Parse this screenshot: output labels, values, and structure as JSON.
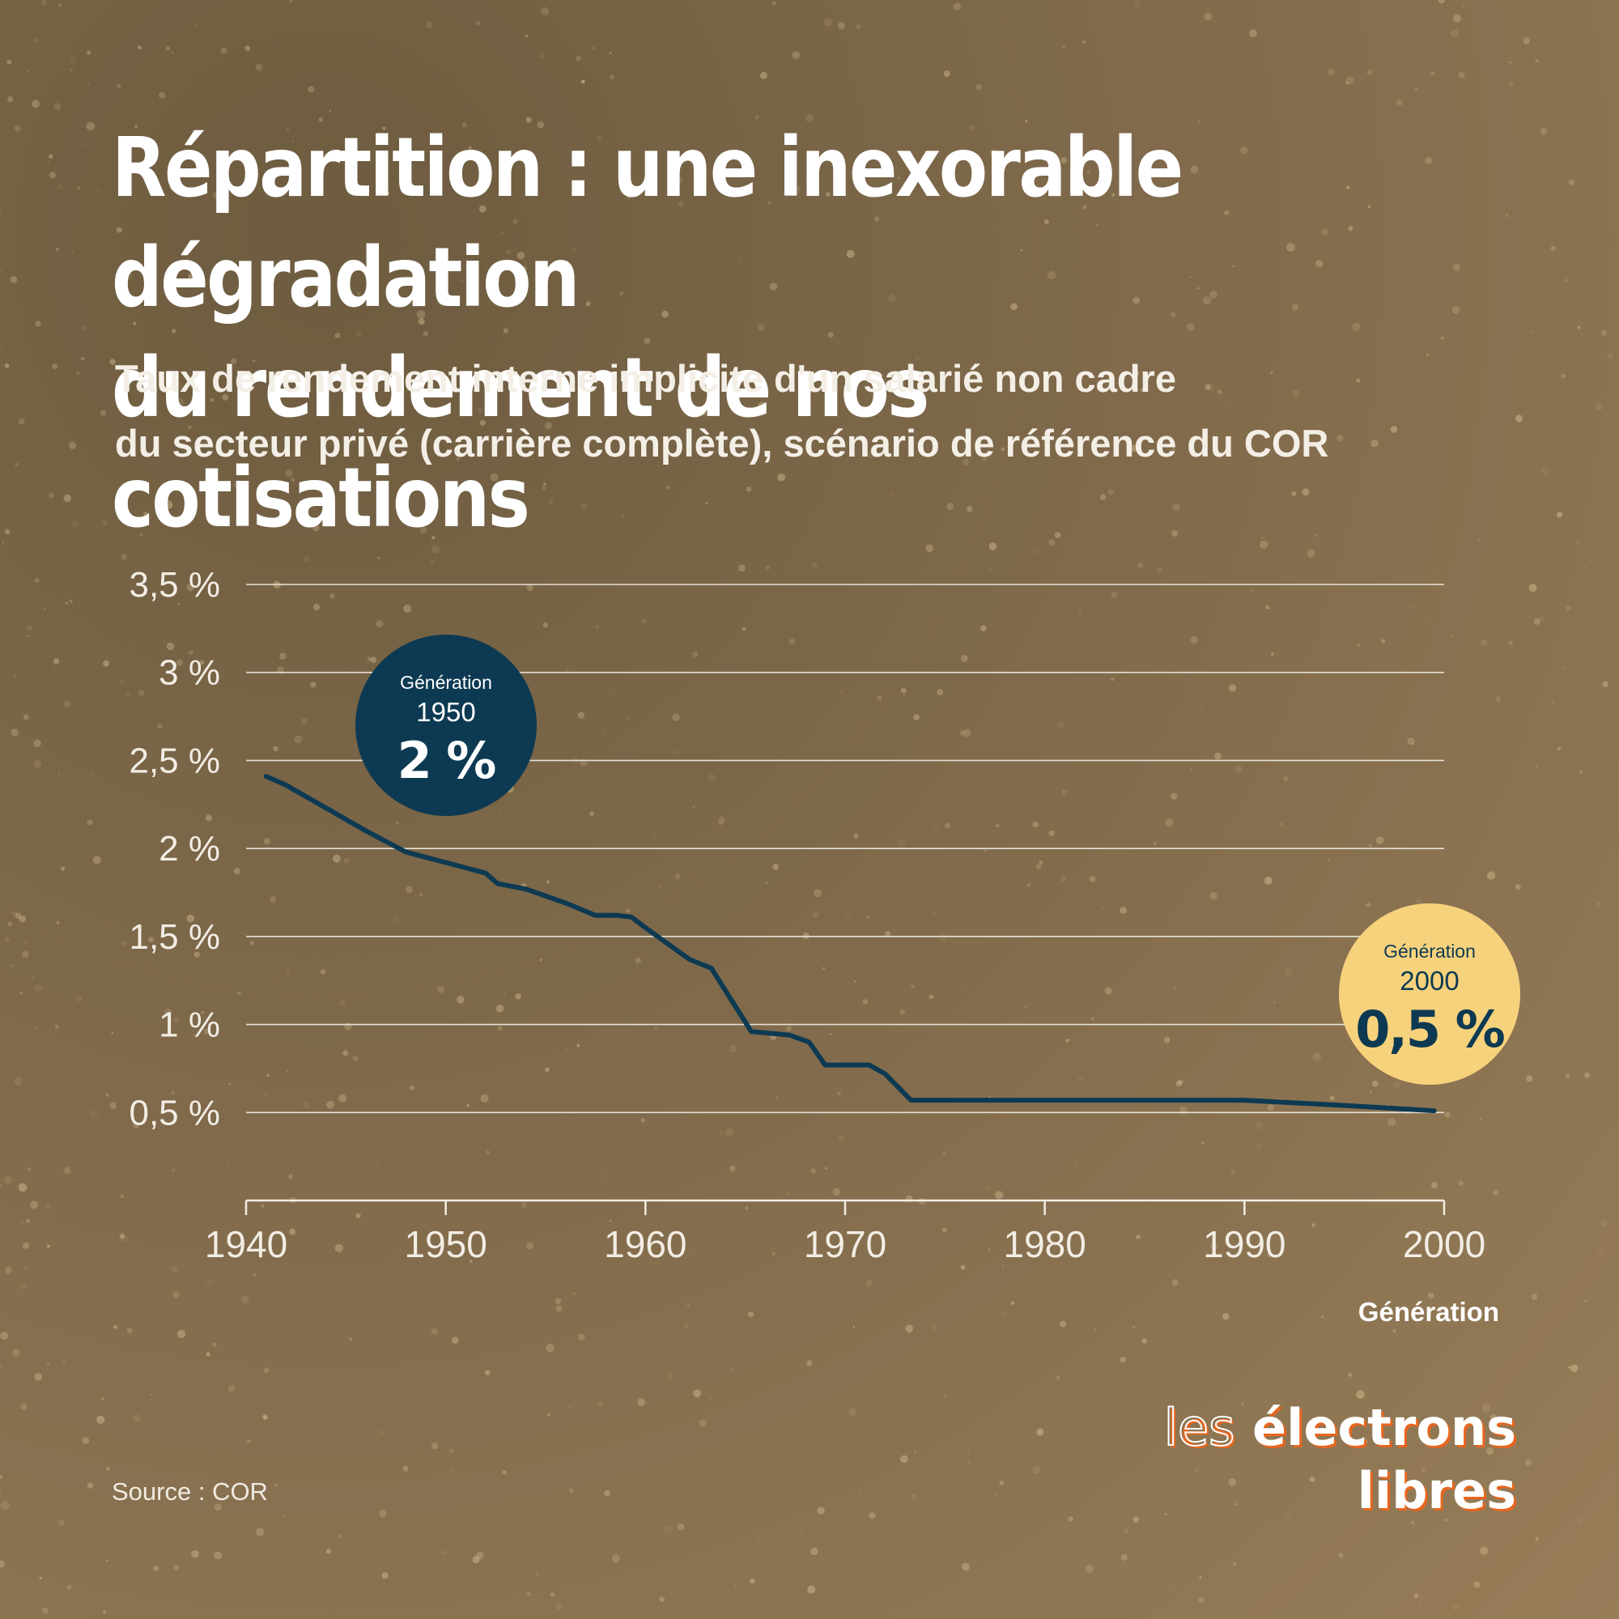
{
  "title_line1": "Répartition : une inexorable dégradation",
  "title_line2": "du rendement de nos cotisations",
  "subtitle_line1": "Taux de rendement interne implicite d'un salarié non cadre",
  "subtitle_line2": "du secteur privé (carrière complète), scénario de référence du COR",
  "source": "Source : COR",
  "logo": {
    "part1": "les",
    "part2": "électrons",
    "part3": "libres"
  },
  "callouts": [
    {
      "label": "Génération",
      "year": "1950",
      "value": "2 %"
    },
    {
      "label": "Génération",
      "year": "2000",
      "value": "0,5 %"
    }
  ],
  "colors": {
    "line": "#0d3a52",
    "bubble_1950": "#0d3a52",
    "bubble_2000": "#f7d27c",
    "accent": "#e8661f"
  },
  "chart_data": {
    "type": "line",
    "xlabel": "Génération",
    "ylabel": "",
    "xlim": [
      1940,
      2000
    ],
    "ylim": [
      0,
      3.5
    ],
    "x_ticks": [
      "1940",
      "1950",
      "1960",
      "1970",
      "1980",
      "1990",
      "2000"
    ],
    "y_ticks": [
      "3,5 %",
      "3 %",
      "2,5 %",
      "2 %",
      "1,5 %",
      "1 %",
      "0,5 %"
    ],
    "y_tick_values": [
      3.5,
      3.0,
      2.5,
      2.0,
      1.5,
      1.0,
      0.5
    ],
    "grid": true,
    "series": [
      {
        "x": [
          1941,
          1942,
          1944,
          1946,
          1948,
          1950,
          1952,
          1952.6,
          1954,
          1956,
          1957.5,
          1958.6,
          1959.3,
          1960,
          1962.2,
          1963.3,
          1965.3,
          1967.2,
          1968.2,
          1969,
          1970.4,
          1971.2,
          1972,
          1973.3,
          1975,
          1980,
          1985,
          1990,
          1995,
          1999.5
        ],
        "y": [
          2.41,
          2.36,
          2.23,
          2.1,
          1.98,
          1.92,
          1.86,
          1.8,
          1.77,
          1.69,
          1.62,
          1.62,
          1.61,
          1.55,
          1.37,
          1.32,
          0.96,
          0.94,
          0.9,
          0.77,
          0.77,
          0.77,
          0.72,
          0.57,
          0.57,
          0.57,
          0.57,
          0.57,
          0.54,
          0.51
        ]
      }
    ]
  }
}
